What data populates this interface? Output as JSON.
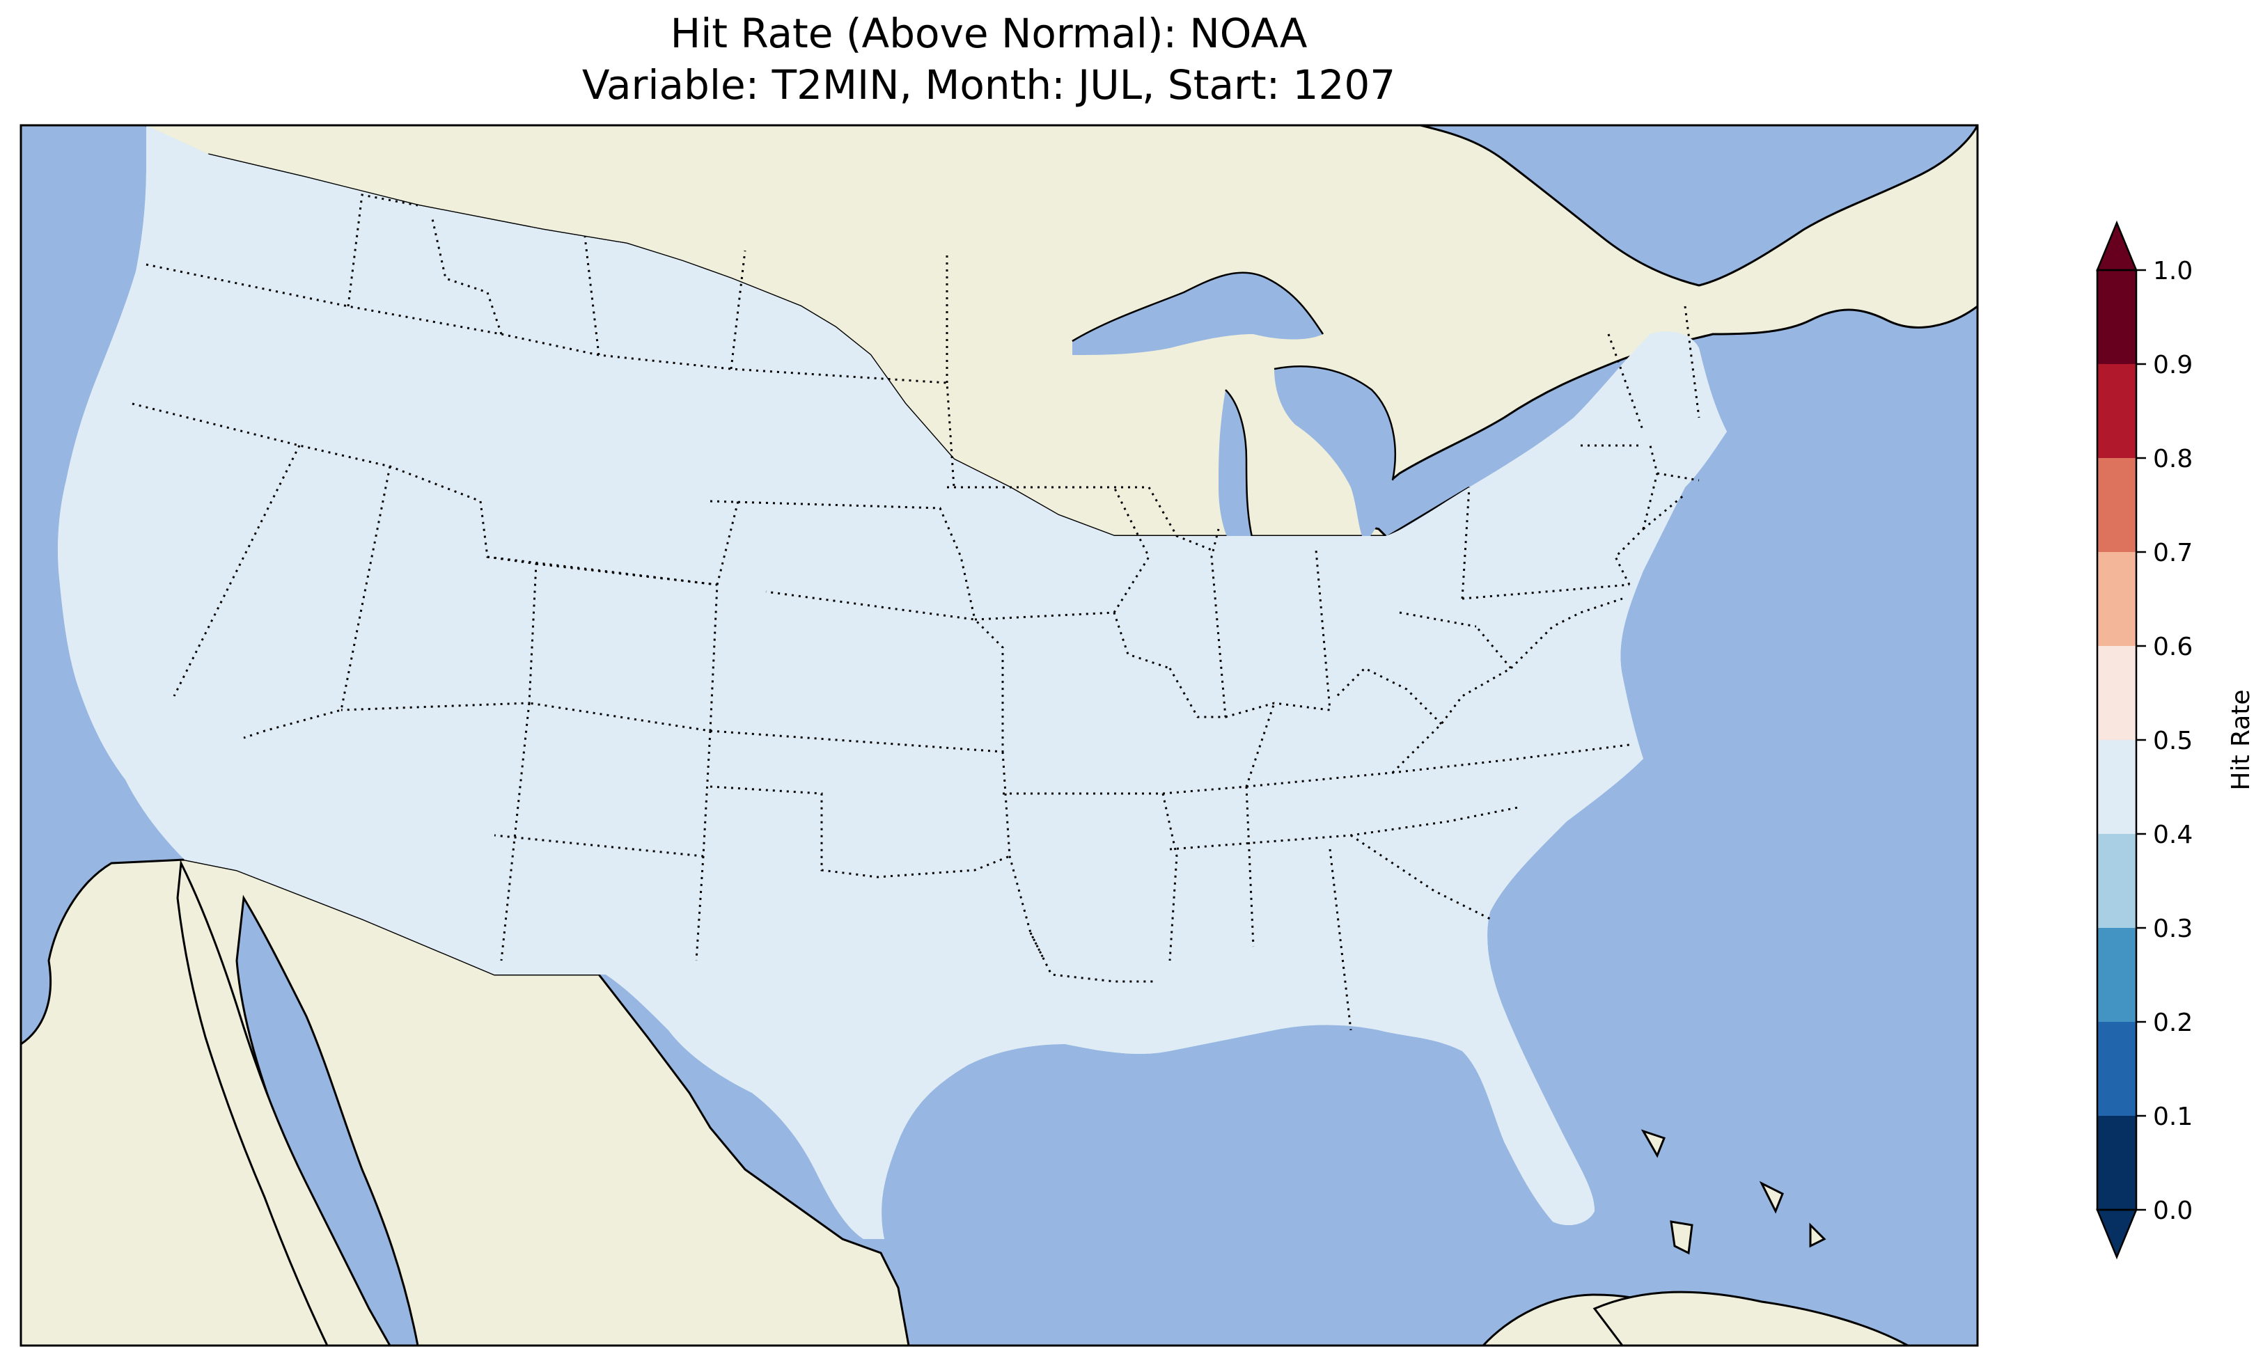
{
  "title_line1": "Hit Rate (Above Normal): NOAA",
  "title_line2": "Variable: T2MIN, Month: JUL, Start: 1207",
  "colors": {
    "ocean": "#97b6e1",
    "land": "#efefdb",
    "border": "#000000"
  },
  "colorbar": {
    "label": "Hit Rate",
    "ticks": [
      "0.0",
      "0.1",
      "0.2",
      "0.3",
      "0.4",
      "0.5",
      "0.6",
      "0.7",
      "0.8",
      "0.9",
      "1.0"
    ],
    "bins": [
      {
        "range": [
          0.0,
          0.1
        ],
        "color": "#053061"
      },
      {
        "range": [
          0.1,
          0.2
        ],
        "color": "#2166ac"
      },
      {
        "range": [
          0.2,
          0.3
        ],
        "color": "#4393c3"
      },
      {
        "range": [
          0.3,
          0.4
        ],
        "color": "#a8cfe3"
      },
      {
        "range": [
          0.4,
          0.5
        ],
        "color": "#e0ecf5"
      },
      {
        "range": [
          0.5,
          0.6
        ],
        "color": "#f9e6de"
      },
      {
        "range": [
          0.6,
          0.7
        ],
        "color": "#f4b699"
      },
      {
        "range": [
          0.7,
          0.8
        ],
        "color": "#dd735c"
      },
      {
        "range": [
          0.8,
          0.9
        ],
        "color": "#b2182b"
      },
      {
        "range": [
          0.9,
          1.0
        ],
        "color": "#67001f"
      }
    ],
    "under_color": "#053061",
    "over_color": "#67001f"
  }
}
